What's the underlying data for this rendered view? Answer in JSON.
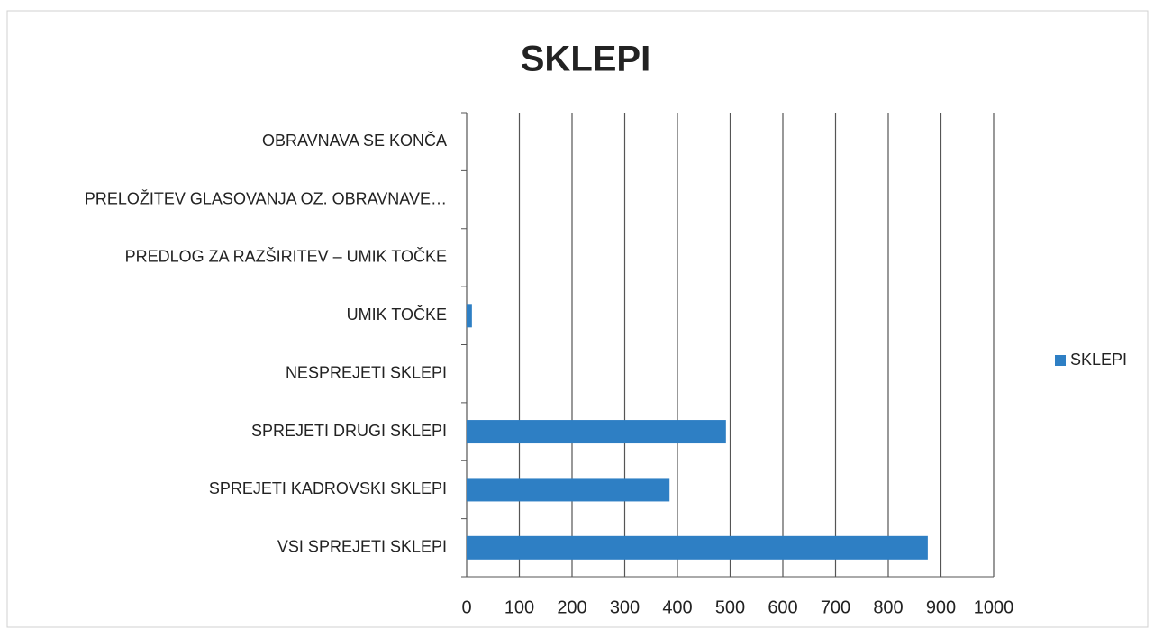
{
  "chart_data": {
    "type": "bar",
    "orientation": "horizontal",
    "title": "SKLEPI",
    "categories": [
      "VSI SPREJETI SKLEPI",
      "SPREJETI KADROVSKI SKLEPI",
      "SPREJETI DRUGI SKLEPI",
      "NESPREJETI SKLEPI",
      "UMIK TOČKE",
      "PREDLOG ZA RAZŠIRITEV – UMIK TOČKE",
      "PRELOŽITEV GLASOVANJA OZ. OBRAVNAVE…",
      "OBRAVNAVA SE KONČA"
    ],
    "series": [
      {
        "name": "SKLEPI",
        "color": "#2e7fc4",
        "values": [
          875,
          385,
          492,
          0,
          10,
          0,
          0,
          0
        ]
      }
    ],
    "xlim": [
      0,
      1000
    ],
    "xticks": [
      0,
      100,
      200,
      300,
      400,
      500,
      600,
      700,
      800,
      900,
      1000
    ],
    "grid": true,
    "legend": "right"
  }
}
